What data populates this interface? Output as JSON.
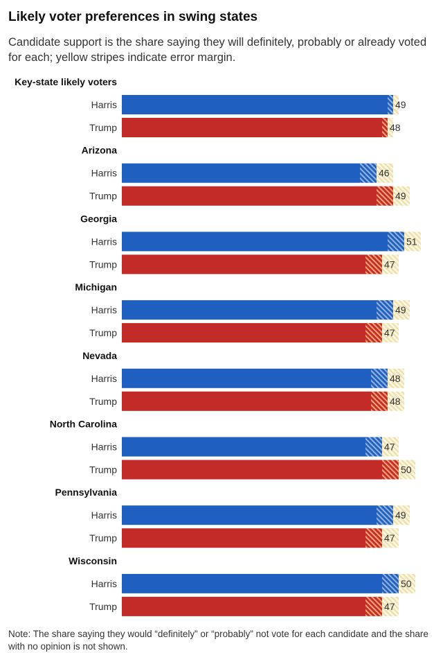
{
  "title": "Likely voter preferences in swing states",
  "subtitle": "Candidate support is the share saying they will definitely, probably or already voted for each; yellow stripes indicate error margin.",
  "note": "Note: The share saying they would “definitely” or “probably” not vote for each candidate and the share with no opinion is not shown.",
  "colors": {
    "harris": "#1f5fbf",
    "harris_hatch": "#5b86bd",
    "trump": "#c22b27",
    "trump_hatch": "#e0704a",
    "margin": "#f4eccb",
    "margin_stripe": "#e8dca8"
  },
  "chart_data": {
    "type": "bar",
    "orientation": "horizontal",
    "title": "Likely voter preferences in swing states",
    "categories": [
      "Key-state likely voters",
      "Arizona",
      "Georgia",
      "Michigan",
      "Nevada",
      "North Carolina",
      "Pennsylvania",
      "Wisconsin"
    ],
    "series": [
      {
        "name": "Harris",
        "values": [
          49,
          46,
          51,
          49,
          48,
          47,
          49,
          50
        ],
        "error_margin": [
          1,
          3,
          3,
          3,
          3,
          3,
          3,
          3
        ]
      },
      {
        "name": "Trump",
        "values": [
          48,
          49,
          47,
          47,
          48,
          50,
          47,
          47
        ],
        "error_margin": [
          1,
          3,
          3,
          3,
          3,
          3,
          3,
          3
        ]
      }
    ],
    "xlim": [
      0,
      54
    ],
    "grid": false,
    "legend": "none"
  }
}
